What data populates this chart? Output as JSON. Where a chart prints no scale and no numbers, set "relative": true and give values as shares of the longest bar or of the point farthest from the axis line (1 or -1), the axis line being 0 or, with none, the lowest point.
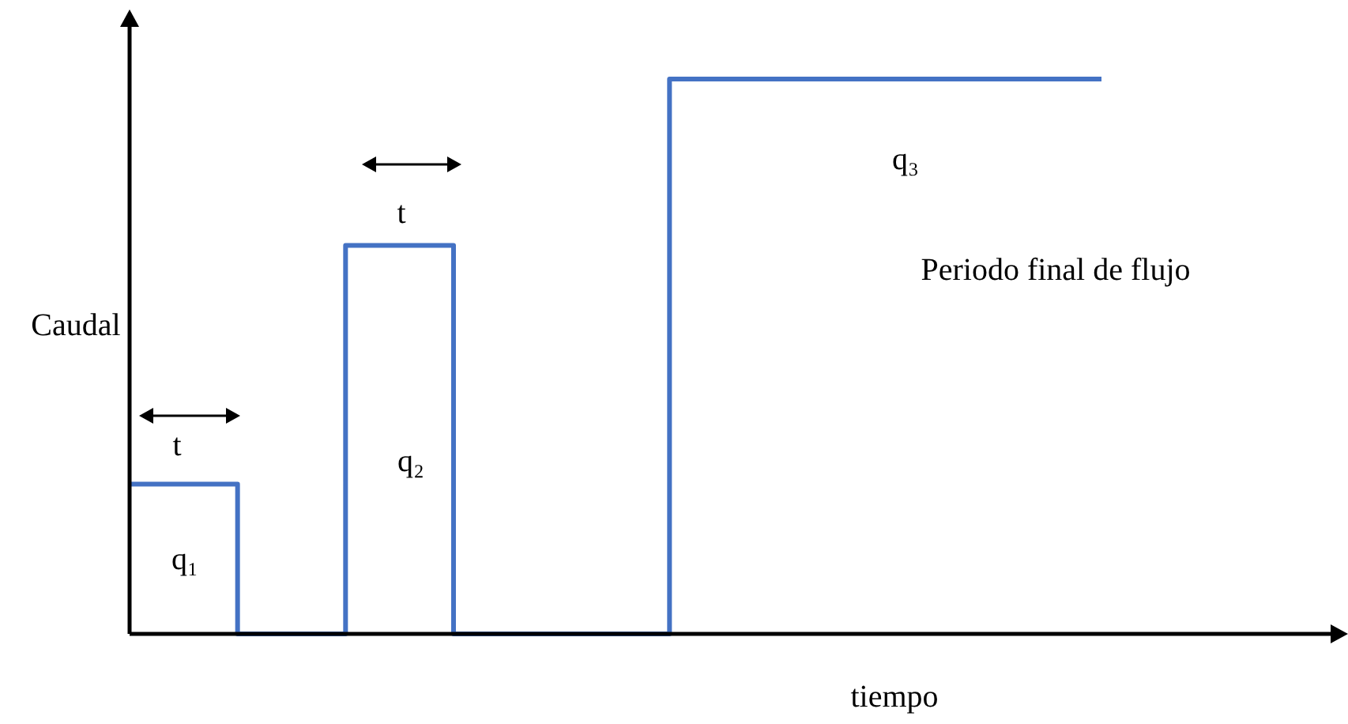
{
  "chart_data": {
    "type": "step",
    "relative": true,
    "xlabel": "tiempo",
    "ylabel": "Caudal",
    "categories": [
      null,
      null,
      null,
      null,
      null,
      null,
      null,
      null,
      null,
      null
    ],
    "series": [
      {
        "color": "#4472c4",
        "values": [
          0.27,
          0,
          0.7,
          0,
          0,
          1,
          1,
          1,
          1,
          1
        ]
      }
    ],
    "annotations": [
      "t",
      "q₁",
      "t",
      "q₂",
      "q₃",
      "Periodo final de flujo"
    ]
  }
}
